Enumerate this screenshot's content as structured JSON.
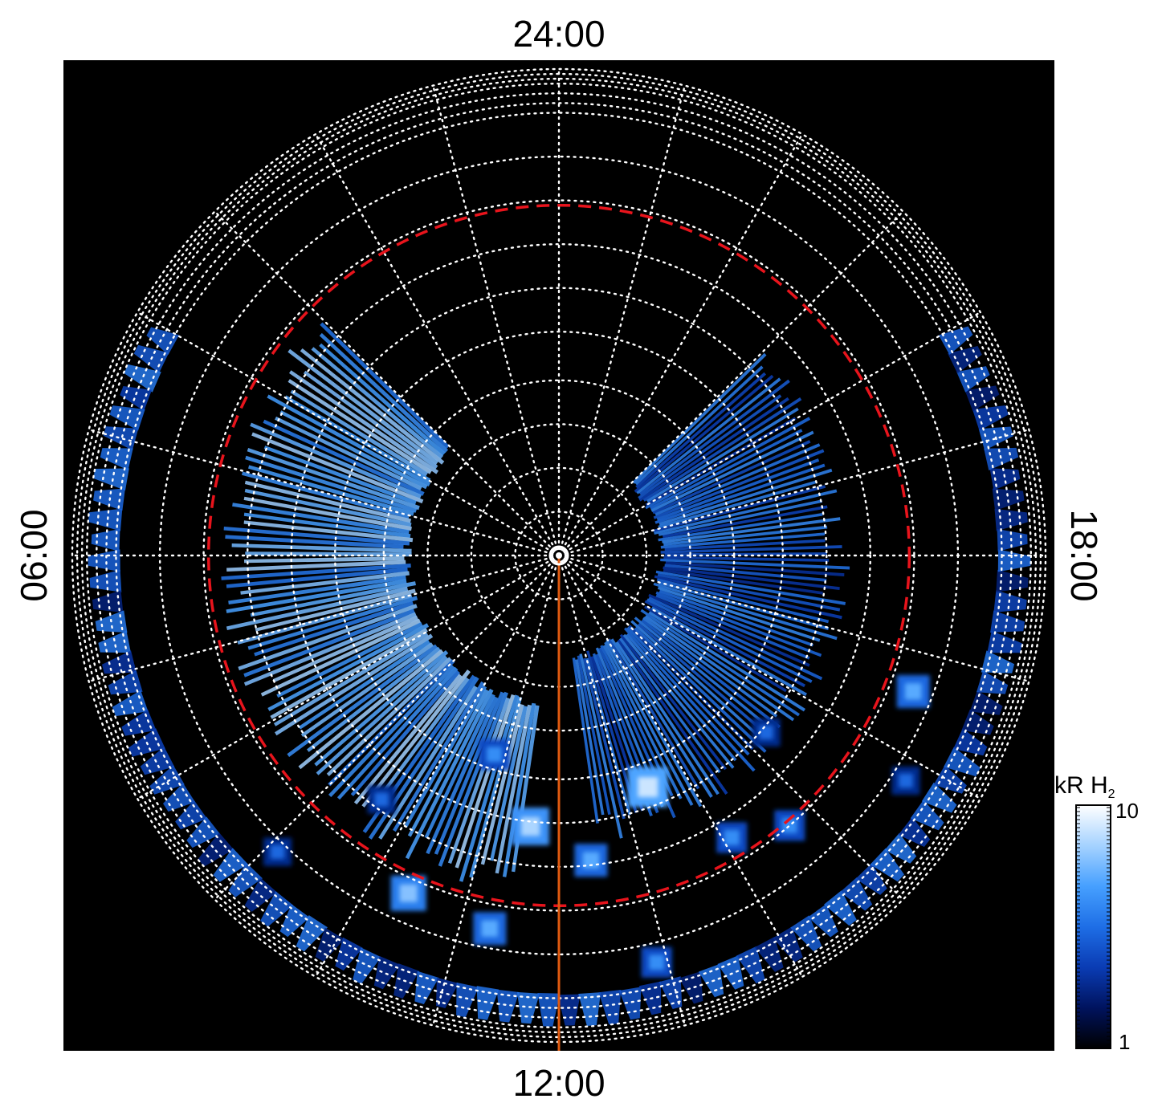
{
  "chart_data": {
    "type": "heatmap",
    "projection": "polar",
    "background_color": "#000000",
    "local_time_labels": {
      "top": "24:00",
      "bottom": "12:00",
      "left": "06:00",
      "right": "18:00"
    },
    "grid": {
      "on": true,
      "style": "dotted",
      "color": "#ffffff",
      "meridian_step_hours": 1,
      "rings": [
        0.09,
        0.18,
        0.27,
        0.36,
        0.46,
        0.55,
        0.64,
        0.73,
        0.82,
        0.91,
        0.93,
        0.95,
        0.97,
        0.98,
        0.99,
        1.0
      ]
    },
    "reference_circle": {
      "color": "#e8141c",
      "style": "dashed",
      "radius": 0.72
    },
    "meridian_line": {
      "color": "#e05a10",
      "local_time": "12:00"
    },
    "pole_marker": {
      "color": "#ffffff"
    },
    "colorbar": {
      "label": "kR H",
      "label_subscript": "2",
      "min_label": "1",
      "max_label": "10",
      "min": 1,
      "max": 10,
      "scale": "log",
      "colors": [
        "#000000",
        "#00135e",
        "#0a3cb4",
        "#1e6ee6",
        "#46a0ff",
        "#a5d2ff",
        "#ffffff"
      ]
    },
    "emission": {
      "units": "kR",
      "bands": [
        {
          "region": "dawn",
          "lt_from": 3.0,
          "lt_to": 11.5,
          "colat_from": 0.3,
          "colat_to": 0.7,
          "intensity": 6.0
        },
        {
          "region": "dusk",
          "lt_from": 12.5,
          "lt_to": 21.0,
          "colat_from": 0.2,
          "colat_to": 0.6,
          "intensity": 3.5
        },
        {
          "region": "limb",
          "lt_from": 4.0,
          "lt_to": 20.0,
          "colat_from": 0.9,
          "colat_to": 0.97,
          "intensity": 3.0
        }
      ],
      "spots": [
        {
          "lt": 11.6,
          "colat": 0.56,
          "intensity": 7
        },
        {
          "lt": 13.4,
          "colat": 0.51,
          "intensity": 8
        },
        {
          "lt": 12.4,
          "colat": 0.63,
          "intensity": 5
        },
        {
          "lt": 10.8,
          "colat": 0.43,
          "intensity": 4
        },
        {
          "lt": 14.1,
          "colat": 0.68,
          "intensity": 4
        },
        {
          "lt": 10.4,
          "colat": 0.76,
          "intensity": 6
        },
        {
          "lt": 11.3,
          "colat": 0.78,
          "intensity": 5
        },
        {
          "lt": 14.7,
          "colat": 0.73,
          "intensity": 4
        },
        {
          "lt": 15.3,
          "colat": 0.56,
          "intensity": 3
        },
        {
          "lt": 9.6,
          "colat": 0.62,
          "intensity": 3
        },
        {
          "lt": 16.6,
          "colat": 0.78,
          "intensity": 5
        },
        {
          "lt": 12.9,
          "colat": 0.86,
          "intensity": 4
        },
        {
          "lt": 9.1,
          "colat": 0.84,
          "intensity": 3
        },
        {
          "lt": 15.8,
          "colat": 0.85,
          "intensity": 3
        }
      ]
    }
  }
}
